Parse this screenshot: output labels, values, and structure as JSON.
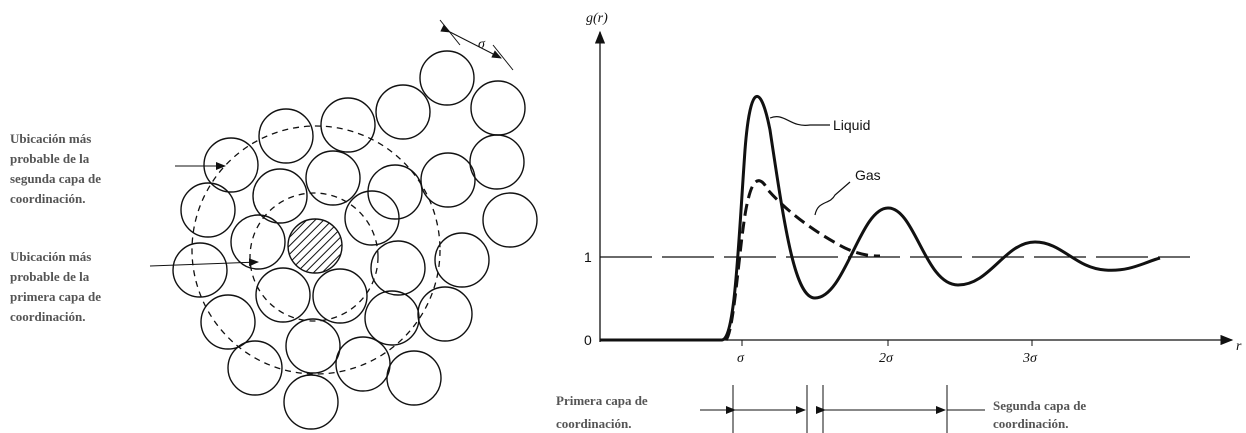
{
  "left_figure": {
    "spacing_label": "σ",
    "second_shell_label": [
      "Ubicación más",
      "probable de la",
      "segunda capa de",
      "coordinación."
    ],
    "first_shell_label": [
      "Ubicación más",
      "probable de la",
      "primera capa de",
      "coordinación."
    ]
  },
  "right_figure": {
    "y_axis_label": "g(r)",
    "x_axis_label": "r",
    "y_tick_labels": [
      "1",
      "0"
    ],
    "x_tick_labels": [
      "σ",
      "2σ",
      "3σ"
    ],
    "curve_labels": [
      "Liquid",
      "Gas"
    ],
    "first_shell_label": [
      "Primera capa de",
      "coordinación."
    ],
    "second_shell_label": [
      "Segunda capa de",
      "coordinación."
    ]
  }
}
